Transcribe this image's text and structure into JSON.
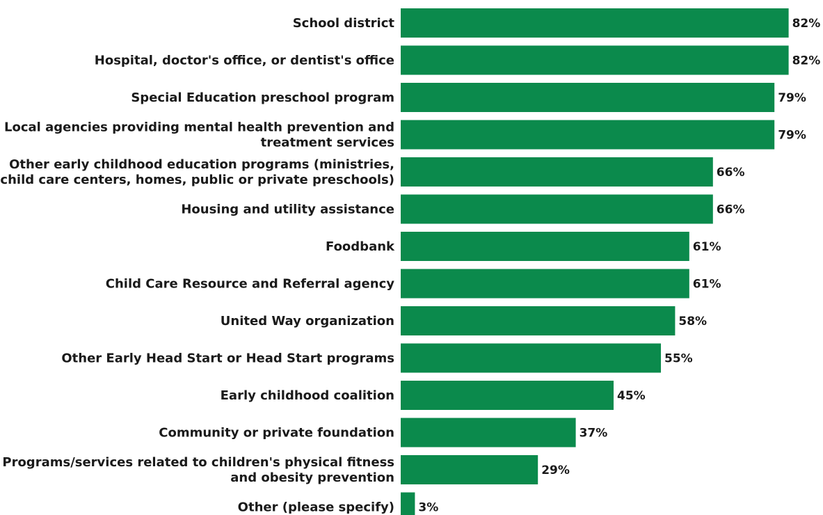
{
  "chart_data": {
    "type": "bar",
    "orientation": "horizontal",
    "categories": [
      "School district",
      "Hospital, doctor's office, or dentist's office",
      "Special Education preschool program",
      "Local agencies providing mental health prevention and treatment services",
      "Other early childhood education programs (ministries, child care centers, homes, public or private preschools)",
      "Housing and utility assistance",
      "Foodbank",
      "Child Care Resource and Referral agency",
      "United Way organization",
      "Other Early Head Start or Head Start programs",
      "Early childhood coalition",
      "Community or private foundation",
      "Programs/services related to children's physical fitness and obesity prevention",
      "Other (please specify)"
    ],
    "category_lines": [
      [
        "School district"
      ],
      [
        "Hospital, doctor's office, or dentist's office"
      ],
      [
        "Special Education preschool program"
      ],
      [
        "Local agencies providing mental health prevention and",
        "treatment services"
      ],
      [
        "Other early childhood education programs (ministries,",
        "child care centers, homes, public or private preschools)"
      ],
      [
        "Housing and utility assistance"
      ],
      [
        "Foodbank"
      ],
      [
        "Child Care Resource and Referral agency"
      ],
      [
        "United Way organization"
      ],
      [
        "Other Early Head Start or Head Start programs"
      ],
      [
        "Early childhood coalition"
      ],
      [
        "Community or private foundation"
      ],
      [
        "Programs/services related to children's physical fitness",
        "and obesity prevention"
      ],
      [
        "Other (please specify)"
      ]
    ],
    "values": [
      82,
      82,
      79,
      79,
      66,
      66,
      61,
      61,
      58,
      55,
      45,
      37,
      29,
      3
    ],
    "value_labels": [
      "82%",
      "82%",
      "79%",
      "79%",
      "66%",
      "66%",
      "61%",
      "61%",
      "58%",
      "55%",
      "45%",
      "37%",
      "29%",
      "3%"
    ],
    "unit": "%",
    "xlim": [
      0,
      100
    ],
    "grid": false,
    "legend": "none",
    "bar_color": "#0b8a4c",
    "title": "",
    "xlabel": "",
    "ylabel": ""
  }
}
